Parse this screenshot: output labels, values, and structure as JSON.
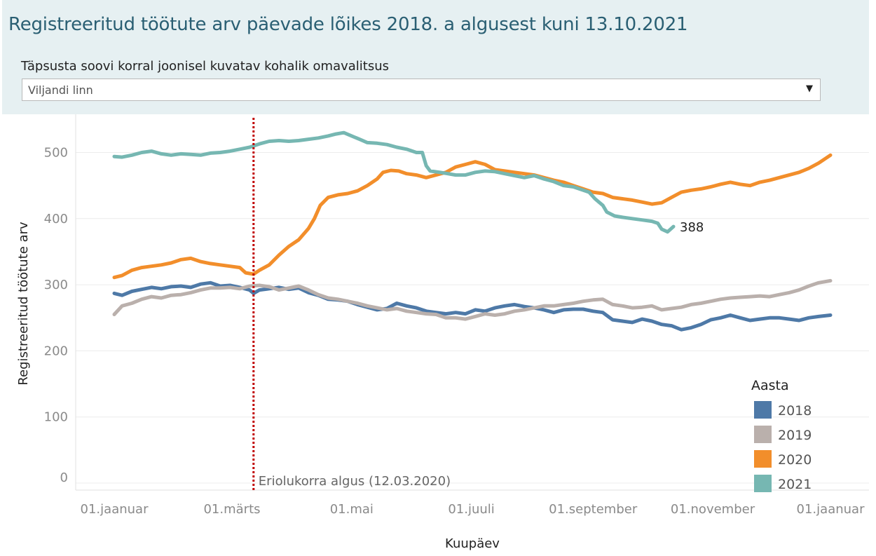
{
  "header": {
    "title": "Registreeritud töötute arv päevade lõikes 2018. a algusest kuni 13.10.2021",
    "filter_label": "Täpsusta soovi korral  joonisel kuvatav kohalik omavalitsus",
    "filter_value": "Viljandi linn",
    "filter_arrow": "▼"
  },
  "chart_data": {
    "type": "line",
    "xlabel": "Kuupäev",
    "ylabel": "Registreeritud töötute arv",
    "ylim": [
      0,
      560
    ],
    "yticks": [
      0,
      100,
      200,
      300,
      400,
      500
    ],
    "x_unit": "day of year",
    "xlim": [
      1,
      366
    ],
    "xticks": [
      {
        "x": 1,
        "label": "01.jaanuar"
      },
      {
        "x": 61,
        "label": "01.märts"
      },
      {
        "x": 122,
        "label": "01.mai"
      },
      {
        "x": 183,
        "label": "01.juuli"
      },
      {
        "x": 245,
        "label": "01.september"
      },
      {
        "x": 306,
        "label": "01.november"
      },
      {
        "x": 366,
        "label": "01.jaanuar"
      }
    ],
    "grid": "horizontal",
    "annotation": {
      "x": 72,
      "label": "Eriolukorra algus (12.03.2020)",
      "color": "#c00000"
    },
    "end_label": {
      "series": "2021",
      "x": 286,
      "y": 388,
      "label": "388"
    },
    "legend": {
      "title": "Aasta",
      "position": "bottom-right"
    },
    "series": [
      {
        "name": "2018",
        "color": "#4e79a7",
        "points": [
          [
            1,
            287
          ],
          [
            5,
            284
          ],
          [
            10,
            290
          ],
          [
            15,
            293
          ],
          [
            20,
            296
          ],
          [
            25,
            294
          ],
          [
            30,
            297
          ],
          [
            35,
            298
          ],
          [
            40,
            296
          ],
          [
            45,
            301
          ],
          [
            50,
            303
          ],
          [
            55,
            298
          ],
          [
            60,
            299
          ],
          [
            65,
            296
          ],
          [
            70,
            292
          ],
          [
            72,
            287
          ],
          [
            75,
            292
          ],
          [
            80,
            294
          ],
          [
            85,
            296
          ],
          [
            90,
            293
          ],
          [
            95,
            295
          ],
          [
            100,
            288
          ],
          [
            105,
            284
          ],
          [
            110,
            278
          ],
          [
            115,
            277
          ],
          [
            120,
            275
          ],
          [
            125,
            270
          ],
          [
            130,
            266
          ],
          [
            135,
            262
          ],
          [
            140,
            264
          ],
          [
            145,
            272
          ],
          [
            150,
            268
          ],
          [
            155,
            265
          ],
          [
            160,
            260
          ],
          [
            165,
            258
          ],
          [
            170,
            256
          ],
          [
            175,
            258
          ],
          [
            180,
            256
          ],
          [
            185,
            262
          ],
          [
            190,
            260
          ],
          [
            195,
            265
          ],
          [
            200,
            268
          ],
          [
            205,
            270
          ],
          [
            210,
            267
          ],
          [
            215,
            265
          ],
          [
            220,
            262
          ],
          [
            225,
            258
          ],
          [
            230,
            262
          ],
          [
            235,
            263
          ],
          [
            240,
            263
          ],
          [
            245,
            260
          ],
          [
            250,
            258
          ],
          [
            255,
            247
          ],
          [
            260,
            245
          ],
          [
            265,
            243
          ],
          [
            270,
            248
          ],
          [
            275,
            245
          ],
          [
            280,
            240
          ],
          [
            285,
            238
          ],
          [
            290,
            232
          ],
          [
            295,
            235
          ],
          [
            300,
            240
          ],
          [
            305,
            247
          ],
          [
            310,
            250
          ],
          [
            315,
            254
          ],
          [
            320,
            250
          ],
          [
            325,
            246
          ],
          [
            330,
            248
          ],
          [
            335,
            250
          ],
          [
            340,
            250
          ],
          [
            345,
            248
          ],
          [
            350,
            246
          ],
          [
            355,
            250
          ],
          [
            360,
            252
          ],
          [
            366,
            254
          ]
        ]
      },
      {
        "name": "2019",
        "color": "#bab0ac",
        "points": [
          [
            1,
            255
          ],
          [
            5,
            268
          ],
          [
            10,
            272
          ],
          [
            15,
            278
          ],
          [
            20,
            282
          ],
          [
            25,
            280
          ],
          [
            30,
            284
          ],
          [
            35,
            285
          ],
          [
            40,
            288
          ],
          [
            45,
            292
          ],
          [
            50,
            295
          ],
          [
            55,
            295
          ],
          [
            60,
            296
          ],
          [
            65,
            294
          ],
          [
            70,
            298
          ],
          [
            75,
            299
          ],
          [
            80,
            297
          ],
          [
            85,
            292
          ],
          [
            90,
            295
          ],
          [
            95,
            298
          ],
          [
            100,
            292
          ],
          [
            105,
            285
          ],
          [
            110,
            280
          ],
          [
            115,
            278
          ],
          [
            120,
            275
          ],
          [
            125,
            272
          ],
          [
            130,
            268
          ],
          [
            135,
            265
          ],
          [
            140,
            262
          ],
          [
            145,
            264
          ],
          [
            150,
            260
          ],
          [
            155,
            258
          ],
          [
            160,
            256
          ],
          [
            165,
            255
          ],
          [
            170,
            250
          ],
          [
            175,
            250
          ],
          [
            180,
            248
          ],
          [
            185,
            252
          ],
          [
            190,
            256
          ],
          [
            195,
            254
          ],
          [
            200,
            256
          ],
          [
            205,
            260
          ],
          [
            210,
            262
          ],
          [
            215,
            265
          ],
          [
            220,
            268
          ],
          [
            225,
            268
          ],
          [
            230,
            270
          ],
          [
            235,
            272
          ],
          [
            240,
            275
          ],
          [
            245,
            277
          ],
          [
            250,
            278
          ],
          [
            255,
            270
          ],
          [
            260,
            268
          ],
          [
            265,
            265
          ],
          [
            270,
            266
          ],
          [
            275,
            268
          ],
          [
            280,
            262
          ],
          [
            285,
            264
          ],
          [
            290,
            266
          ],
          [
            295,
            270
          ],
          [
            300,
            272
          ],
          [
            305,
            275
          ],
          [
            310,
            278
          ],
          [
            315,
            280
          ],
          [
            320,
            281
          ],
          [
            325,
            282
          ],
          [
            330,
            283
          ],
          [
            335,
            282
          ],
          [
            340,
            285
          ],
          [
            345,
            288
          ],
          [
            350,
            292
          ],
          [
            355,
            298
          ],
          [
            360,
            303
          ],
          [
            366,
            306
          ]
        ]
      },
      {
        "name": "2020",
        "color": "#f28e2b",
        "points": [
          [
            1,
            311
          ],
          [
            5,
            314
          ],
          [
            10,
            322
          ],
          [
            15,
            326
          ],
          [
            20,
            328
          ],
          [
            25,
            330
          ],
          [
            30,
            333
          ],
          [
            35,
            338
          ],
          [
            40,
            340
          ],
          [
            45,
            335
          ],
          [
            50,
            332
          ],
          [
            55,
            330
          ],
          [
            60,
            328
          ],
          [
            65,
            326
          ],
          [
            68,
            318
          ],
          [
            72,
            316
          ],
          [
            75,
            322
          ],
          [
            80,
            330
          ],
          [
            85,
            345
          ],
          [
            90,
            358
          ],
          [
            95,
            368
          ],
          [
            100,
            385
          ],
          [
            103,
            400
          ],
          [
            106,
            420
          ],
          [
            110,
            432
          ],
          [
            115,
            436
          ],
          [
            120,
            438
          ],
          [
            125,
            442
          ],
          [
            130,
            450
          ],
          [
            135,
            460
          ],
          [
            138,
            470
          ],
          [
            142,
            473
          ],
          [
            146,
            472
          ],
          [
            150,
            468
          ],
          [
            155,
            466
          ],
          [
            160,
            462
          ],
          [
            165,
            466
          ],
          [
            170,
            470
          ],
          [
            175,
            478
          ],
          [
            180,
            482
          ],
          [
            185,
            486
          ],
          [
            190,
            482
          ],
          [
            195,
            474
          ],
          [
            200,
            472
          ],
          [
            205,
            470
          ],
          [
            210,
            468
          ],
          [
            215,
            466
          ],
          [
            220,
            462
          ],
          [
            225,
            458
          ],
          [
            230,
            455
          ],
          [
            235,
            450
          ],
          [
            240,
            445
          ],
          [
            245,
            440
          ],
          [
            250,
            438
          ],
          [
            255,
            432
          ],
          [
            260,
            430
          ],
          [
            265,
            428
          ],
          [
            270,
            425
          ],
          [
            275,
            422
          ],
          [
            280,
            424
          ],
          [
            285,
            432
          ],
          [
            290,
            440
          ],
          [
            295,
            443
          ],
          [
            300,
            445
          ],
          [
            305,
            448
          ],
          [
            310,
            452
          ],
          [
            315,
            455
          ],
          [
            320,
            452
          ],
          [
            325,
            450
          ],
          [
            330,
            455
          ],
          [
            335,
            458
          ],
          [
            340,
            462
          ],
          [
            345,
            466
          ],
          [
            350,
            470
          ],
          [
            355,
            476
          ],
          [
            360,
            484
          ],
          [
            366,
            496
          ]
        ]
      },
      {
        "name": "2021",
        "color": "#76b7b2",
        "points": [
          [
            1,
            494
          ],
          [
            5,
            493
          ],
          [
            10,
            496
          ],
          [
            15,
            500
          ],
          [
            20,
            502
          ],
          [
            25,
            498
          ],
          [
            30,
            496
          ],
          [
            35,
            498
          ],
          [
            40,
            497
          ],
          [
            45,
            496
          ],
          [
            50,
            499
          ],
          [
            55,
            500
          ],
          [
            60,
            502
          ],
          [
            65,
            505
          ],
          [
            70,
            508
          ],
          [
            75,
            513
          ],
          [
            80,
            517
          ],
          [
            85,
            518
          ],
          [
            90,
            517
          ],
          [
            95,
            518
          ],
          [
            100,
            520
          ],
          [
            105,
            522
          ],
          [
            110,
            525
          ],
          [
            114,
            528
          ],
          [
            118,
            530
          ],
          [
            122,
            525
          ],
          [
            126,
            520
          ],
          [
            130,
            515
          ],
          [
            135,
            514
          ],
          [
            140,
            512
          ],
          [
            145,
            508
          ],
          [
            150,
            505
          ],
          [
            155,
            500
          ],
          [
            158,
            500
          ],
          [
            160,
            480
          ],
          [
            162,
            472
          ],
          [
            167,
            470
          ],
          [
            175,
            466
          ],
          [
            180,
            466
          ],
          [
            185,
            470
          ],
          [
            190,
            472
          ],
          [
            195,
            471
          ],
          [
            200,
            468
          ],
          [
            205,
            465
          ],
          [
            210,
            462
          ],
          [
            215,
            465
          ],
          [
            220,
            460
          ],
          [
            225,
            456
          ],
          [
            230,
            450
          ],
          [
            235,
            448
          ],
          [
            240,
            443
          ],
          [
            243,
            440
          ],
          [
            246,
            430
          ],
          [
            250,
            420
          ],
          [
            252,
            410
          ],
          [
            256,
            404
          ],
          [
            260,
            402
          ],
          [
            265,
            400
          ],
          [
            270,
            398
          ],
          [
            275,
            396
          ],
          [
            278,
            393
          ],
          [
            280,
            384
          ],
          [
            283,
            380
          ],
          [
            286,
            388
          ]
        ]
      }
    ]
  }
}
